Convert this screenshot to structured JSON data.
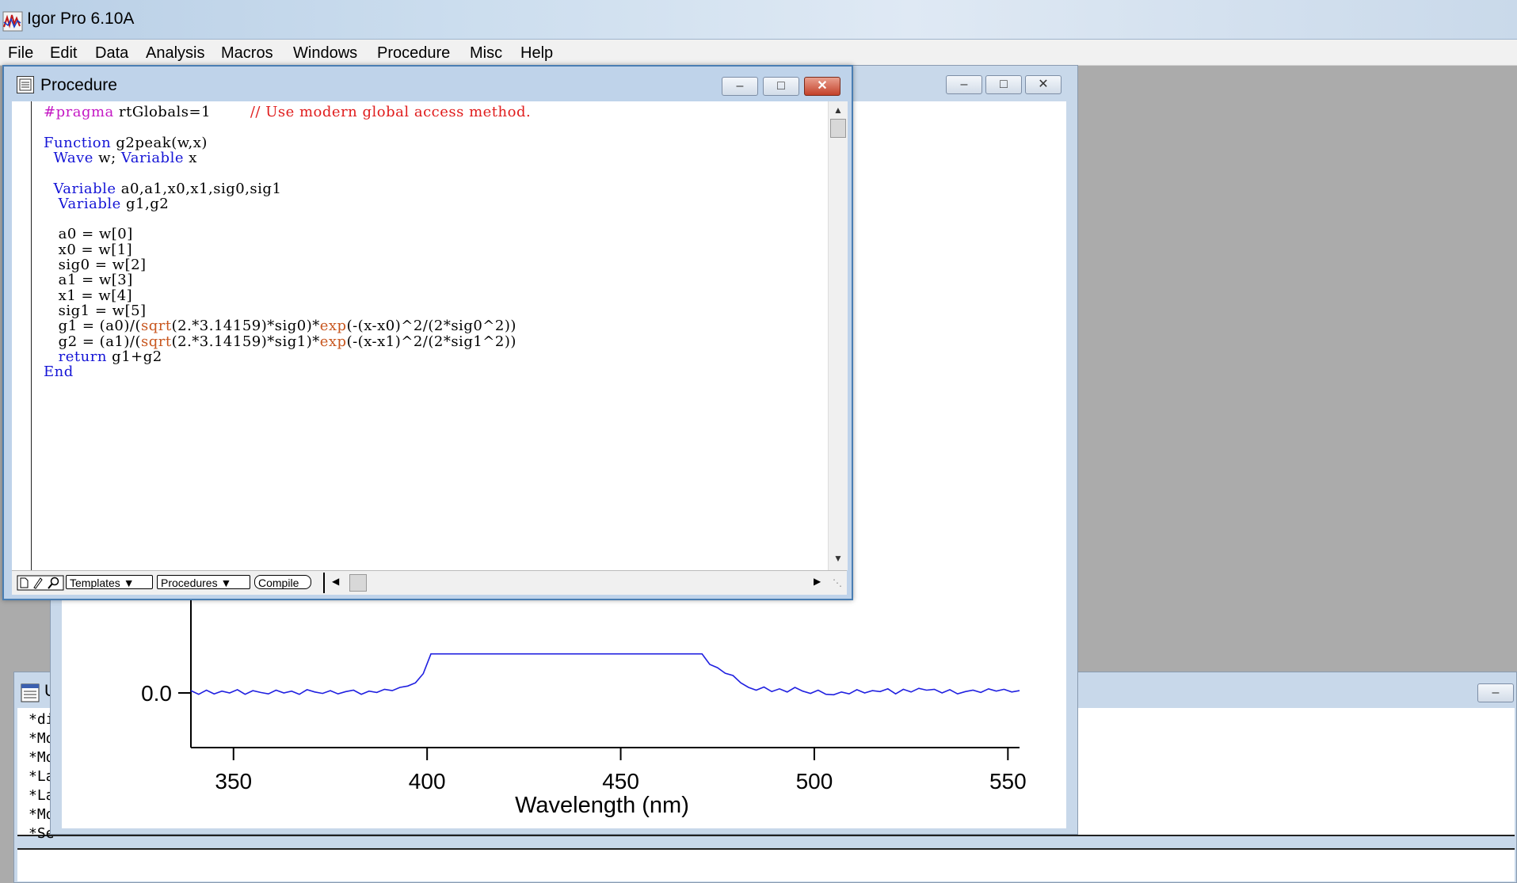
{
  "app": {
    "title": "Igor Pro 6.10A"
  },
  "menu": [
    "File",
    "Edit",
    "Data",
    "Analysis",
    "Macros",
    "Windows",
    "Procedure",
    "Misc",
    "Help"
  ],
  "procedure": {
    "title": "Procedure",
    "toolbar": {
      "templates": "Templates",
      "procedures": "Procedures",
      "compile": "Compile"
    },
    "code": [
      [
        {
          "t": "#pragma",
          "c": "pr"
        },
        {
          "t": " rtGlobals=1        ",
          "c": ""
        },
        {
          "t": "// Use modern global access method.",
          "c": "cm"
        }
      ],
      [],
      [
        {
          "t": "Function",
          "c": "kw"
        },
        {
          "t": " g2peak(w,x)",
          "c": ""
        }
      ],
      [
        {
          "t": "  ",
          "c": ""
        },
        {
          "t": "Wave",
          "c": "kw"
        },
        {
          "t": " w; ",
          "c": ""
        },
        {
          "t": "Variable",
          "c": "kw"
        },
        {
          "t": " x",
          "c": ""
        }
      ],
      [],
      [
        {
          "t": "  ",
          "c": ""
        },
        {
          "t": "Variable",
          "c": "kw"
        },
        {
          "t": " a0,a1,x0,x1,sig0,sig1",
          "c": ""
        }
      ],
      [
        {
          "t": "   ",
          "c": ""
        },
        {
          "t": "Variable",
          "c": "kw"
        },
        {
          "t": " g1,g2",
          "c": ""
        }
      ],
      [],
      [
        {
          "t": "   a0 = w[0]",
          "c": ""
        }
      ],
      [
        {
          "t": "   x0 = w[1]",
          "c": ""
        }
      ],
      [
        {
          "t": "   sig0 = w[2]",
          "c": ""
        }
      ],
      [
        {
          "t": "   a1 = w[3]",
          "c": ""
        }
      ],
      [
        {
          "t": "   x1 = w[4]",
          "c": ""
        }
      ],
      [
        {
          "t": "   sig1 = w[5]",
          "c": ""
        }
      ],
      [
        {
          "t": "   g1 = (a0)/(",
          "c": ""
        },
        {
          "t": "sqrt",
          "c": "fn"
        },
        {
          "t": "(2.*3.14159)*sig0)*",
          "c": ""
        },
        {
          "t": "exp",
          "c": "fn"
        },
        {
          "t": "(-(x-x0)^2/(2*sig0^2))",
          "c": ""
        }
      ],
      [
        {
          "t": "   g2 = (a1)/(",
          "c": ""
        },
        {
          "t": "sqrt",
          "c": "fn"
        },
        {
          "t": "(2.*3.14159)*sig1)*",
          "c": ""
        },
        {
          "t": "exp",
          "c": "fn"
        },
        {
          "t": "(-(x-x1)^2/(2*sig1^2))",
          "c": ""
        }
      ],
      [
        {
          "t": "   ",
          "c": ""
        },
        {
          "t": "return",
          "c": "kw"
        },
        {
          "t": " g1+g2",
          "c": ""
        }
      ],
      [
        {
          "t": "End",
          "c": "kw"
        }
      ]
    ]
  },
  "command_window": {
    "title_fragment": "U",
    "history": [
      "*di",
      "*Mo",
      "*Mo",
      "*La",
      "*La",
      "*Mo",
      "*Se"
    ]
  },
  "chart_data": {
    "type": "line",
    "xlabel": "Wavelength (nm)",
    "ylabel": "",
    "x_ticks": [
      350,
      400,
      450,
      500,
      550
    ],
    "y_ticks": [
      0.0
    ],
    "y_tick_labels": [
      "0.0"
    ],
    "xlim": [
      339,
      553
    ],
    "series": [
      {
        "color": "#2020e0",
        "x": [
          339,
          341,
          343,
          345,
          347,
          349,
          351,
          353,
          355,
          357,
          359,
          361,
          363,
          365,
          367,
          369,
          371,
          373,
          375,
          377,
          379,
          381,
          383,
          385,
          387,
          389,
          391,
          393,
          395,
          397,
          399,
          401,
          471,
          473,
          475,
          477,
          479,
          481,
          483,
          485,
          487,
          489,
          491,
          493,
          495,
          497,
          499,
          501,
          503,
          505,
          507,
          509,
          511,
          513,
          515,
          517,
          519,
          521,
          523,
          525,
          527,
          529,
          531,
          533,
          535,
          537,
          539,
          541,
          543,
          545,
          547,
          549,
          551,
          553
        ],
        "y": [
          0.05,
          -0.03,
          0.06,
          -0.02,
          0.04,
          0.0,
          0.07,
          -0.03,
          0.05,
          0.01,
          -0.02,
          0.06,
          0.0,
          0.04,
          -0.03,
          0.07,
          0.02,
          -0.01,
          0.05,
          -0.02,
          0.03,
          0.06,
          -0.03,
          0.04,
          0.01,
          0.08,
          0.05,
          0.12,
          0.15,
          0.22,
          0.42,
          0.85,
          0.85,
          0.62,
          0.55,
          0.43,
          0.38,
          0.22,
          0.12,
          0.06,
          0.13,
          0.03,
          0.09,
          0.02,
          0.12,
          0.04,
          -0.01,
          0.06,
          -0.03,
          -0.04,
          0.02,
          -0.02,
          0.07,
          0.0,
          0.05,
          0.03,
          0.09,
          -0.02,
          0.08,
          0.02,
          0.1,
          0.06,
          0.08,
          0.0,
          0.07,
          -0.02,
          0.03,
          0.06,
          0.01,
          0.09,
          0.04,
          0.08,
          0.02,
          0.05
        ]
      }
    ]
  }
}
